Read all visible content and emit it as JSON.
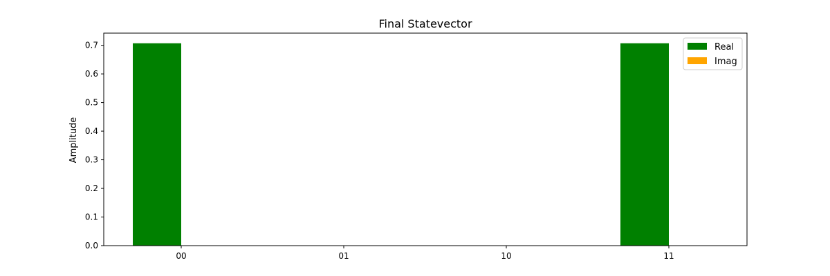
{
  "chart_data": {
    "type": "bar",
    "title": "Final Statevector",
    "xlabel": "",
    "ylabel": "Amplitude",
    "categories": [
      "00",
      "01",
      "10",
      "11"
    ],
    "series": [
      {
        "name": "Real",
        "color": "#008000",
        "values": [
          0.7071,
          0.0,
          0.0,
          0.7071
        ]
      },
      {
        "name": "Imag",
        "color": "#ffa500",
        "values": [
          0.0,
          0.0,
          0.0,
          0.0
        ]
      }
    ],
    "ylim": [
      0,
      0.7425
    ],
    "yticks": [
      "0.0",
      "0.1",
      "0.2",
      "0.3",
      "0.4",
      "0.5",
      "0.6",
      "0.7"
    ],
    "legend_position": "top-right",
    "grid": false
  }
}
